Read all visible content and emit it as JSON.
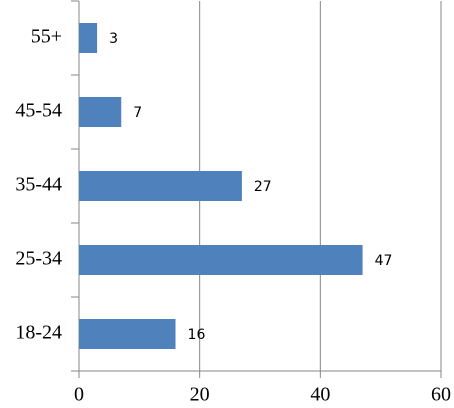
{
  "chart_data": {
    "type": "barh",
    "categories": [
      "18-24",
      "25-34",
      "35-44",
      "45-54",
      "55+"
    ],
    "values": [
      16,
      47,
      27,
      7,
      3
    ],
    "color": "#4f81bd",
    "xlim": [
      0,
      60
    ],
    "xticks": [
      0,
      20,
      40,
      60
    ],
    "grid": true
  }
}
